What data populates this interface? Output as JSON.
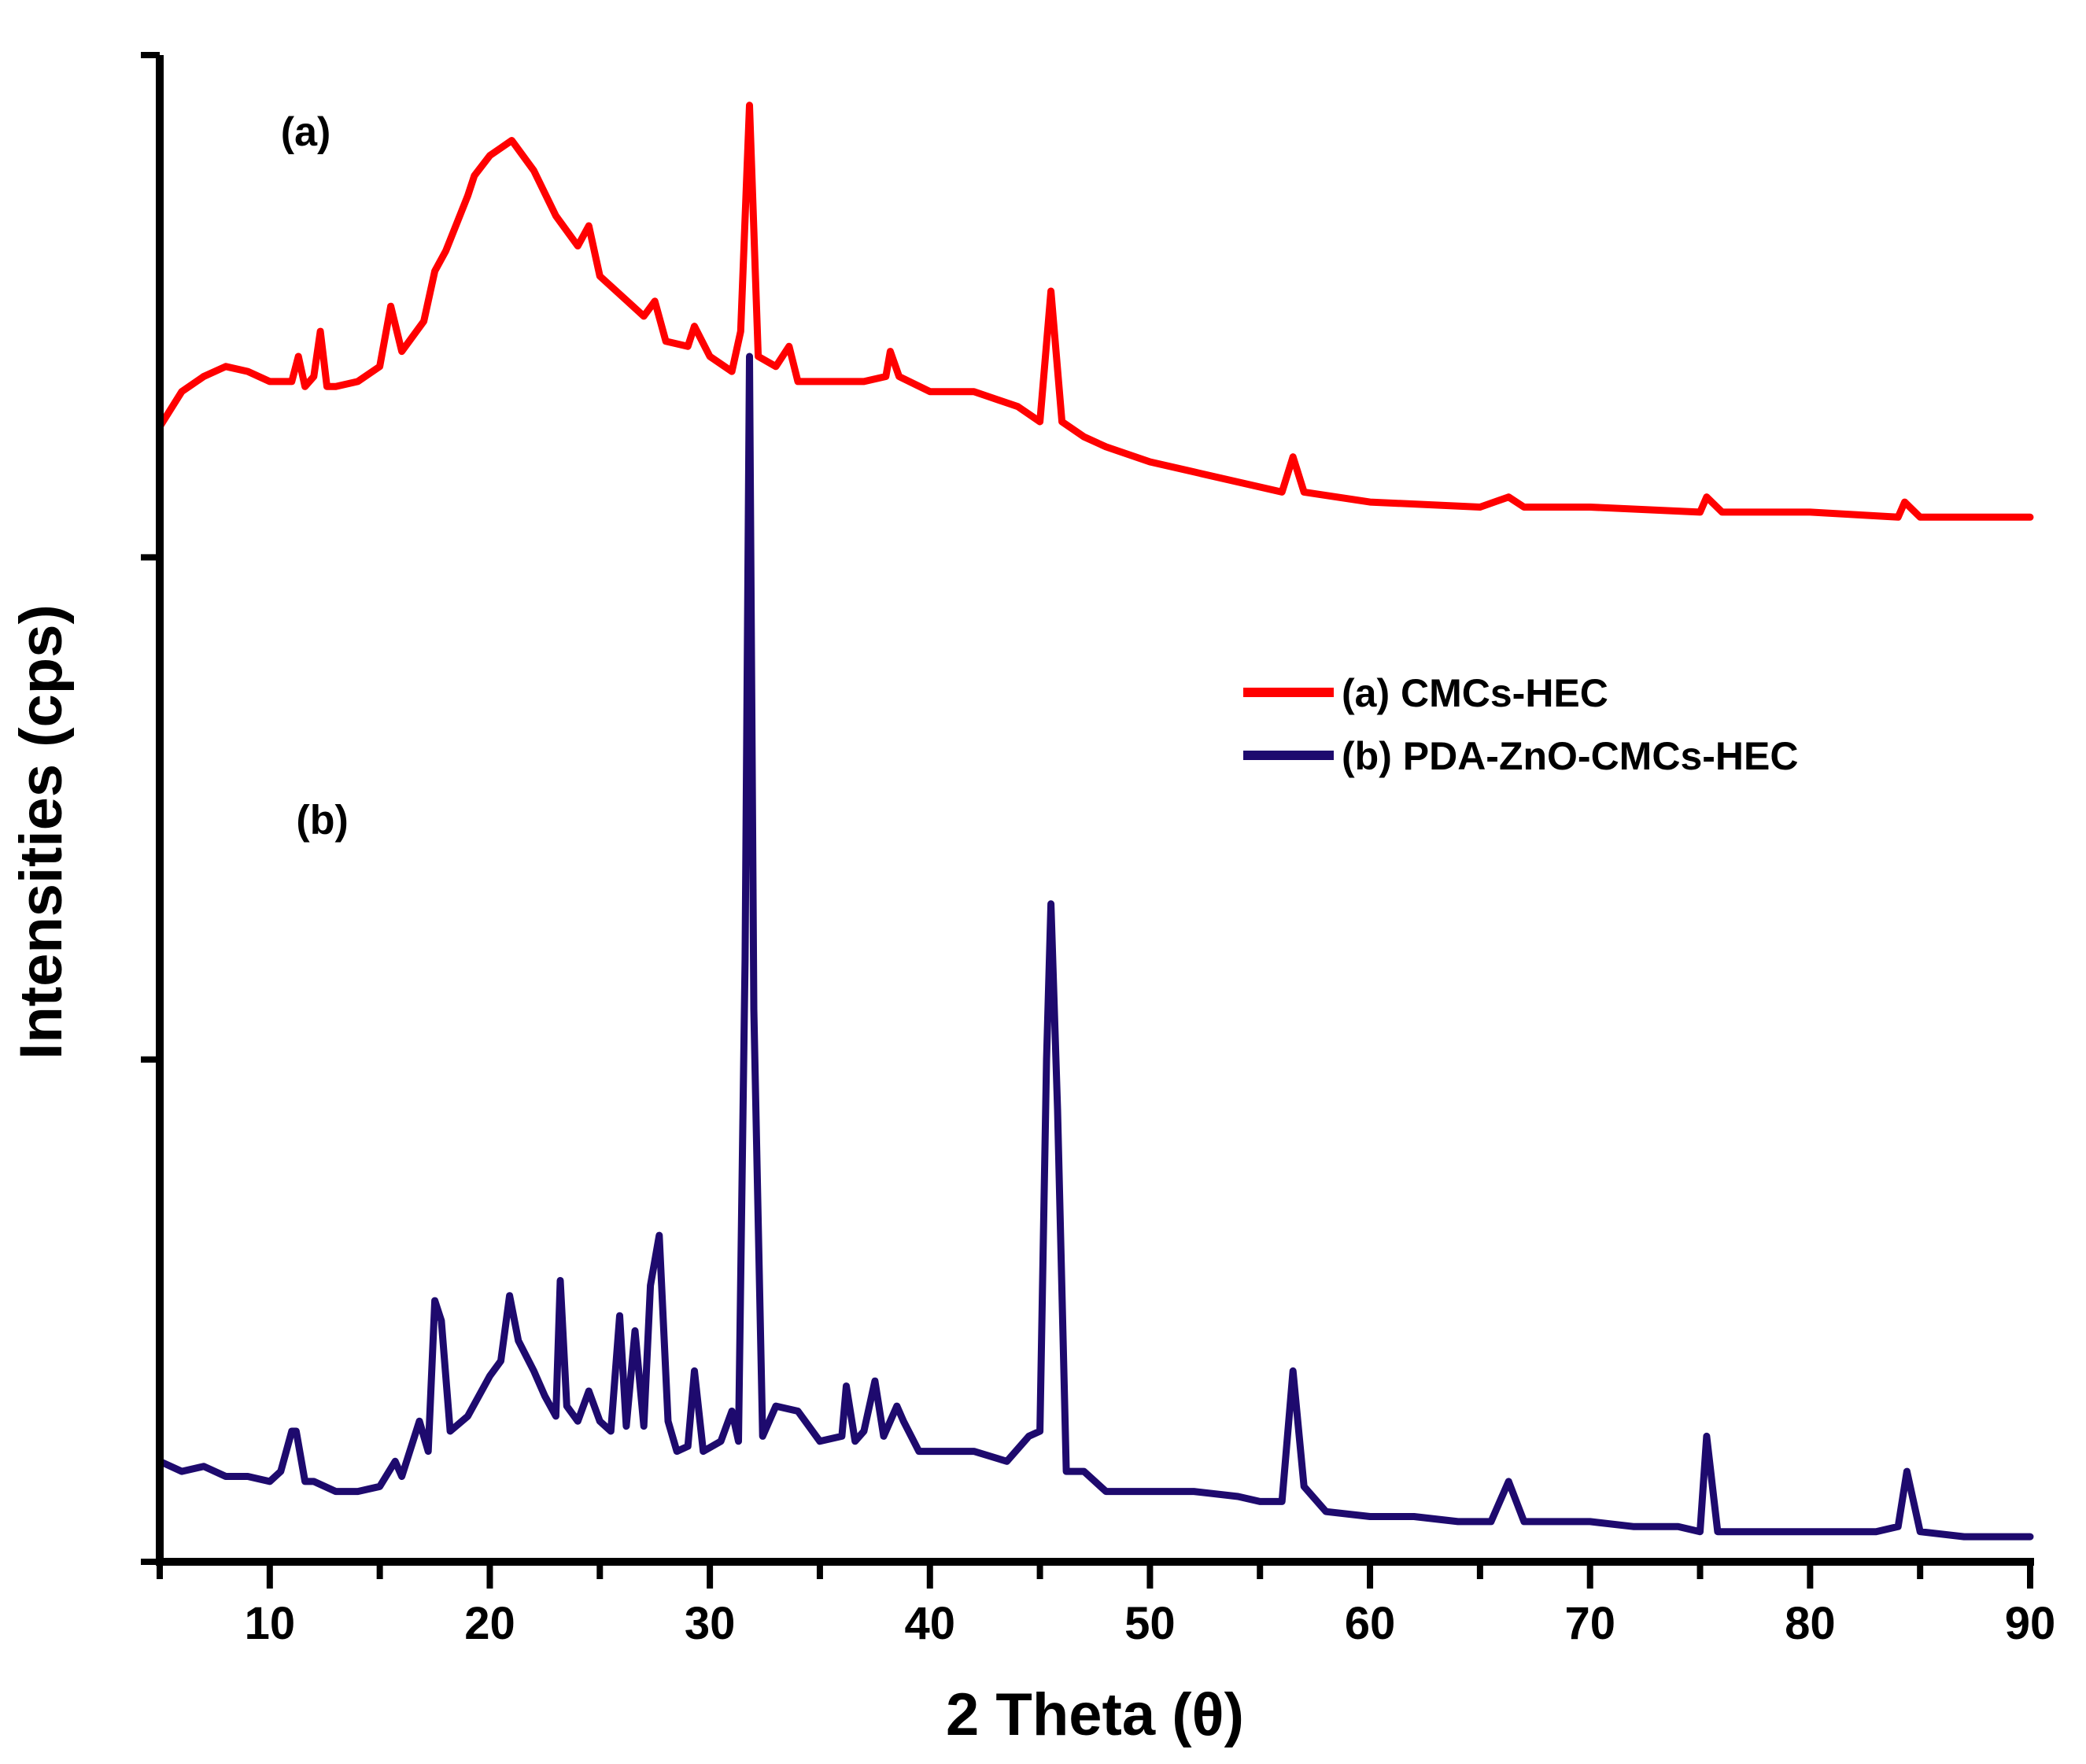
{
  "chart_data": {
    "type": "line",
    "title": "",
    "xlabel": "2 Theta (θ)",
    "ylabel": "Intensities (cps)",
    "xlim": [
      5,
      90
    ],
    "ylim": [
      0,
      3
    ],
    "x_ticks": [
      10,
      20,
      30,
      40,
      50,
      60,
      70,
      80,
      90
    ],
    "y_ticks_labeled": false,
    "grid": false,
    "legend_position": "right-middle",
    "annotations": [
      {
        "text": "(a)",
        "x": 10.5,
        "y": 2.82
      },
      {
        "text": "(b)",
        "x": 11.2,
        "y": 1.45
      }
    ],
    "series": [
      {
        "name": "(a) CMCs-HEC",
        "color": "#ff0000",
        "x": [
          5,
          6,
          7,
          8,
          9,
          10,
          11,
          11.3,
          11.6,
          12,
          12.3,
          12.6,
          13,
          14,
          15,
          15.5,
          16,
          17,
          17.5,
          18,
          19,
          19.3,
          20,
          21,
          22,
          23,
          24,
          24.5,
          25,
          26,
          27,
          27.5,
          28,
          29,
          29.3,
          30,
          31,
          31.4,
          31.8,
          32.2,
          33,
          33.6,
          34,
          35,
          36,
          37,
          38,
          38.2,
          38.6,
          40,
          42,
          44,
          45,
          45.5,
          46,
          47,
          48,
          50,
          52,
          54,
          56,
          56.5,
          57,
          60,
          65,
          66.3,
          67,
          70,
          75,
          75.3,
          76,
          80,
          84,
          84.3,
          85,
          90
        ],
        "y": [
          2.26,
          2.33,
          2.36,
          2.38,
          2.37,
          2.35,
          2.35,
          2.4,
          2.34,
          2.36,
          2.45,
          2.34,
          2.34,
          2.35,
          2.38,
          2.5,
          2.41,
          2.47,
          2.57,
          2.61,
          2.72,
          2.76,
          2.8,
          2.83,
          2.77,
          2.68,
          2.62,
          2.66,
          2.56,
          2.52,
          2.48,
          2.51,
          2.43,
          2.42,
          2.46,
          2.4,
          2.37,
          2.45,
          2.9,
          2.4,
          2.38,
          2.42,
          2.35,
          2.35,
          2.35,
          2.35,
          2.36,
          2.41,
          2.36,
          2.33,
          2.33,
          2.3,
          2.27,
          2.53,
          2.27,
          2.24,
          2.22,
          2.19,
          2.17,
          2.15,
          2.13,
          2.2,
          2.13,
          2.11,
          2.1,
          2.12,
          2.1,
          2.1,
          2.09,
          2.12,
          2.09,
          2.09,
          2.08,
          2.11,
          2.08,
          2.08
        ]
      },
      {
        "name": "(b) PDA-ZnO-CMCs-HEC",
        "color": "#1e0a6e",
        "x": [
          5,
          6,
          7,
          8,
          9,
          10,
          10.5,
          11,
          11.2,
          11.6,
          12,
          13,
          14,
          15,
          15.7,
          16,
          16.8,
          17.2,
          17.5,
          17.8,
          18.2,
          19,
          20,
          20.5,
          20.9,
          21.3,
          22,
          22.5,
          23,
          23.2,
          23.5,
          24,
          24.5,
          25,
          25.5,
          25.9,
          26.2,
          26.6,
          27,
          27.3,
          27.7,
          28.1,
          28.5,
          29,
          29.3,
          29.7,
          30.5,
          31,
          31.3,
          31.6,
          31.8,
          32,
          32.4,
          33,
          34,
          35,
          36,
          36.2,
          36.6,
          37,
          37.5,
          37.9,
          38.5,
          38.8,
          39.5,
          40,
          42,
          43.5,
          44.5,
          45,
          45.3,
          45.5,
          45.8,
          46.2,
          47,
          48,
          50,
          52,
          54,
          55,
          56,
          56.5,
          57,
          58,
          60,
          62,
          64,
          65.5,
          66.3,
          67,
          68,
          70,
          72,
          74,
          75,
          75.3,
          75.8,
          77,
          80,
          83,
          84,
          84.4,
          85,
          87,
          90
        ],
        "y": [
          0.2,
          0.18,
          0.19,
          0.17,
          0.17,
          0.16,
          0.18,
          0.26,
          0.26,
          0.16,
          0.16,
          0.14,
          0.14,
          0.15,
          0.2,
          0.17,
          0.28,
          0.22,
          0.52,
          0.48,
          0.26,
          0.29,
          0.37,
          0.4,
          0.53,
          0.44,
          0.38,
          0.33,
          0.29,
          0.56,
          0.31,
          0.28,
          0.34,
          0.28,
          0.26,
          0.49,
          0.27,
          0.46,
          0.27,
          0.55,
          0.65,
          0.28,
          0.22,
          0.23,
          0.38,
          0.22,
          0.24,
          0.3,
          0.24,
          1.2,
          2.4,
          1.1,
          0.25,
          0.31,
          0.3,
          0.24,
          0.25,
          0.35,
          0.24,
          0.26,
          0.36,
          0.25,
          0.31,
          0.28,
          0.22,
          0.22,
          0.22,
          0.2,
          0.25,
          0.26,
          1.0,
          1.31,
          0.9,
          0.18,
          0.18,
          0.14,
          0.14,
          0.14,
          0.13,
          0.12,
          0.12,
          0.38,
          0.15,
          0.1,
          0.09,
          0.09,
          0.08,
          0.08,
          0.16,
          0.08,
          0.08,
          0.08,
          0.07,
          0.07,
          0.06,
          0.25,
          0.06,
          0.06,
          0.06,
          0.06,
          0.07,
          0.18,
          0.06,
          0.05,
          0.05
        ]
      }
    ]
  }
}
